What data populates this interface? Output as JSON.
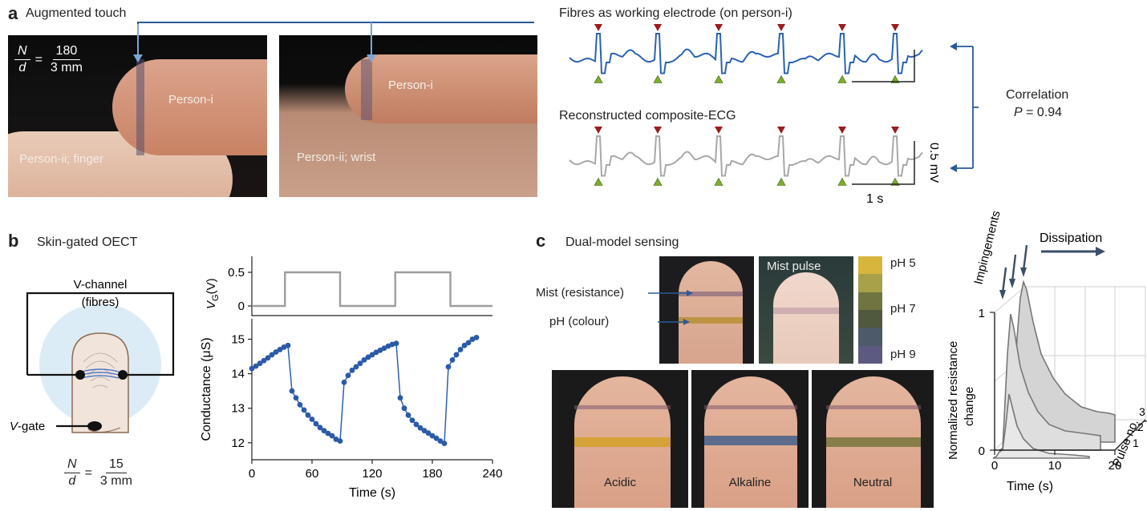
{
  "panel_a": {
    "letter": "a",
    "title": "Augmented touch",
    "fraction": {
      "n": "N",
      "d": "d",
      "eq": "=",
      "num": "180",
      "den": "3 mm"
    },
    "photo1": {
      "person_i": "Person-i",
      "person_ii": "Person-ii; finger"
    },
    "photo2": {
      "person_i": "Person-i",
      "person_ii": "Person-ii; wrist"
    },
    "ecg_top_title": "Fibres as working electrode (on person-i)",
    "ecg_bottom_title": "Reconstructed composite-ECG",
    "scale_v": "0.5 mV",
    "scale_t": "1 s",
    "correlation_label": "Correlation",
    "correlation_p": "P",
    "correlation_value": "= 0.94",
    "colors": {
      "top_trace": "#2a62b0",
      "bottom_trace": "#a8a8a8",
      "peak_marker": "#9b1c1c",
      "trough_marker": "#7fae2a",
      "arrow": "#2a5a9a"
    }
  },
  "panel_b": {
    "letter": "b",
    "title": "Skin-gated OECT",
    "vchannel_line1": "V-channel",
    "vchannel_line2": "(fibres)",
    "vgate_v": "V",
    "vgate_rest": "-gate",
    "fraction": {
      "n": "N",
      "d": "d",
      "eq": "=",
      "num": "15",
      "den": "3 mm"
    }
  },
  "chart_data": [
    {
      "type": "line",
      "title": "",
      "ylabel": "V_G(V)",
      "ylim": [
        0,
        0.5
      ],
      "yticks": [
        "0",
        "0.5"
      ],
      "series": [
        {
          "x": [
            0,
            33,
            33,
            88,
            88,
            143,
            143,
            198,
            198,
            240
          ],
          "values": [
            0,
            0,
            0.5,
            0.5,
            0,
            0,
            0.5,
            0.5,
            0,
            0
          ]
        }
      ]
    },
    {
      "type": "scatter",
      "title": "",
      "xlabel": "Time (s)",
      "ylabel": "Conductance (μS)",
      "xlim": [
        0,
        240
      ],
      "ylim": [
        11.6,
        15.5
      ],
      "xticks": [
        "0",
        "60",
        "120",
        "180",
        "240"
      ],
      "yticks": [
        "12",
        "13",
        "14",
        "15"
      ],
      "series": [
        {
          "x": [
            0,
            4,
            8,
            12,
            16,
            20,
            24,
            28,
            32,
            36,
            40,
            44,
            48,
            52,
            56,
            60,
            64,
            68,
            72,
            76,
            80,
            84,
            88,
            92,
            96,
            100,
            104,
            108,
            112,
            116,
            120,
            124,
            128,
            132,
            136,
            140,
            144,
            148,
            152,
            156,
            160,
            164,
            168,
            172,
            176,
            180,
            184,
            188,
            192,
            196,
            200,
            204,
            208,
            212,
            216,
            220,
            224
          ],
          "values": [
            14.15,
            14.22,
            14.3,
            14.38,
            14.46,
            14.55,
            14.63,
            14.7,
            14.77,
            14.82,
            13.5,
            13.3,
            13.1,
            12.95,
            12.8,
            12.68,
            12.55,
            12.44,
            12.35,
            12.27,
            12.2,
            12.1,
            12.05,
            13.75,
            13.95,
            14.1,
            14.2,
            14.3,
            14.4,
            14.48,
            14.55,
            14.62,
            14.68,
            14.74,
            14.8,
            14.85,
            14.88,
            13.3,
            13.0,
            12.8,
            12.65,
            12.53,
            12.43,
            12.35,
            12.28,
            12.2,
            12.13,
            12.05,
            11.98,
            14.2,
            14.4,
            14.55,
            14.7,
            14.82,
            14.9,
            15.0,
            15.05
          ]
        }
      ]
    },
    {
      "type": "area",
      "title": "",
      "xlabel": "Time (s)",
      "ylabel": "Normalized resistance change",
      "zlabel": "Pulse no.",
      "xticks": [
        "0",
        "10",
        "20"
      ],
      "yticks": [
        "0",
        "1"
      ],
      "zticks": [
        "1",
        "2",
        "3"
      ],
      "annotations": [
        "Impingements",
        "Dissipation"
      ]
    }
  ],
  "panel_c": {
    "letter": "c",
    "title": "Dual-model sensing",
    "mist_label": "Mist (resistance)",
    "ph_label": "pH (colour)",
    "mist_pulse": "Mist pulse",
    "ph_scale": [
      "pH 5",
      "pH 7",
      "pH 9"
    ],
    "ph_colors": [
      "#d8b63e",
      "#a9a04a",
      "#6f7440",
      "#50583e",
      "#4d5a6a",
      "#5c5a80"
    ],
    "bottom_labels": [
      "Acidic",
      "Alkaline",
      "Neutral"
    ],
    "impingements": "Impingements",
    "dissipation": "Dissipation"
  }
}
